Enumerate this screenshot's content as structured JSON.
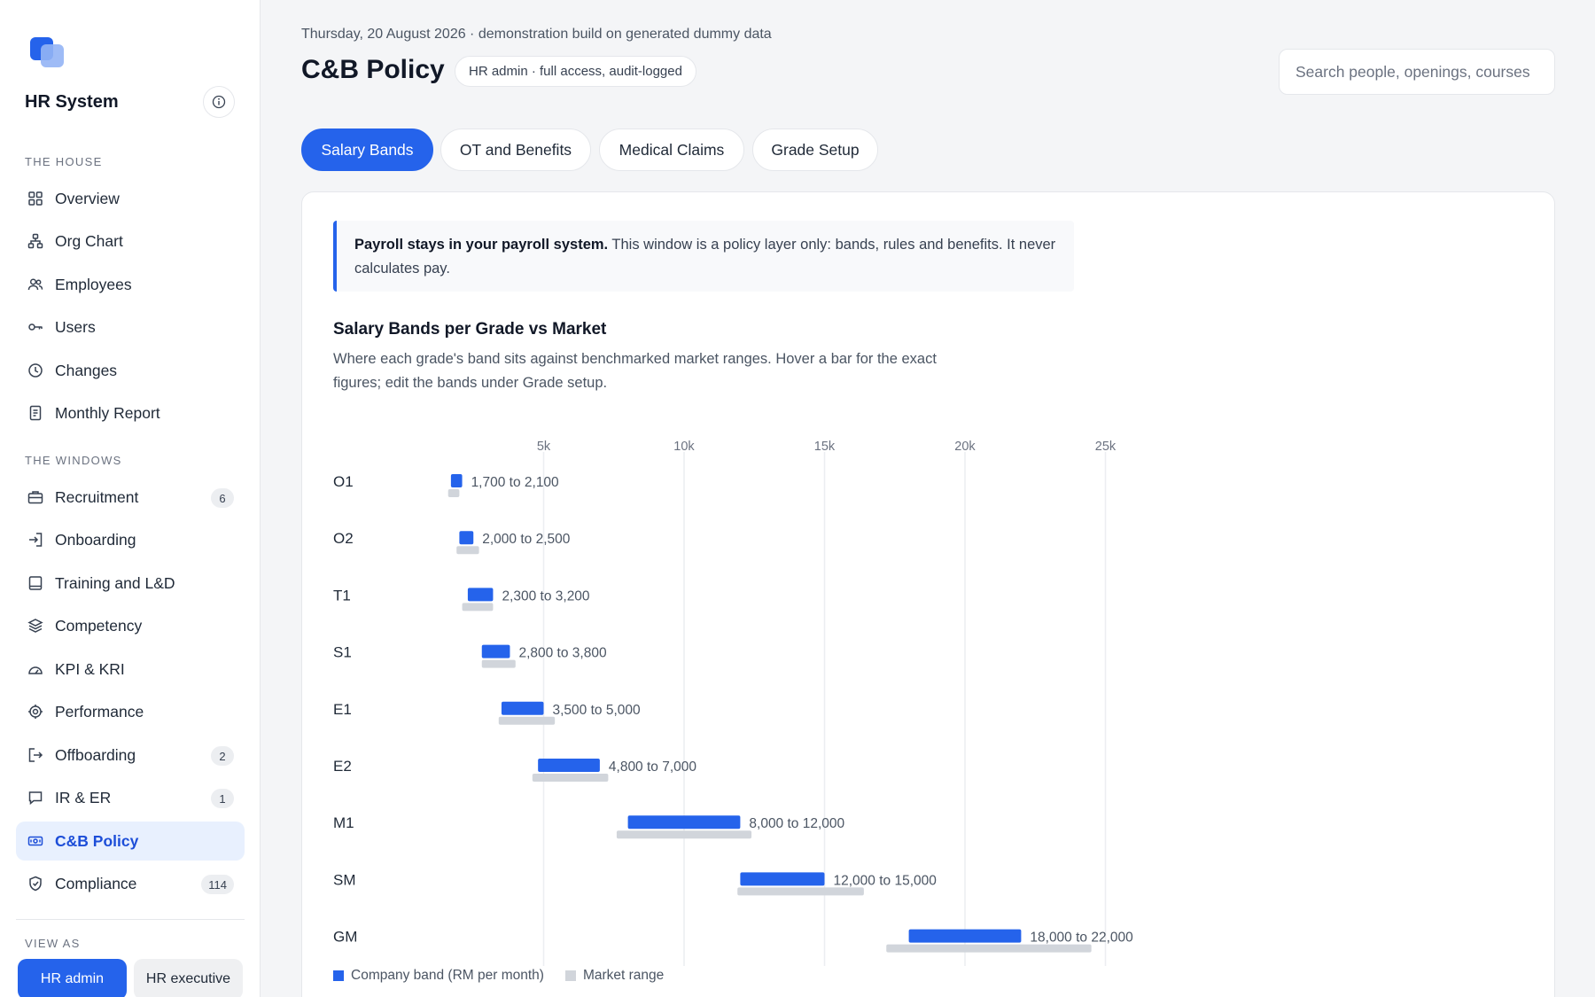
{
  "app": {
    "title": "HR System"
  },
  "sidebar": {
    "section_house": "THE HOUSE",
    "house_items": [
      {
        "label": "Overview",
        "icon": "grid-icon"
      },
      {
        "label": "Org Chart",
        "icon": "org-chart-icon"
      },
      {
        "label": "Employees",
        "icon": "people-icon"
      },
      {
        "label": "Users",
        "icon": "key-icon"
      },
      {
        "label": "Changes",
        "icon": "clock-icon"
      },
      {
        "label": "Monthly Report",
        "icon": "document-icon"
      }
    ],
    "section_windows": "THE WINDOWS",
    "window_items": [
      {
        "label": "Recruitment",
        "icon": "briefcase-icon",
        "badge": "6"
      },
      {
        "label": "Onboarding",
        "icon": "sign-in-icon",
        "badge": ""
      },
      {
        "label": "Training and L&D",
        "icon": "book-icon",
        "badge": ""
      },
      {
        "label": "Competency",
        "icon": "layers-icon",
        "badge": ""
      },
      {
        "label": "KPI & KRI",
        "icon": "gauge-icon",
        "badge": ""
      },
      {
        "label": "Performance",
        "icon": "target-icon",
        "badge": ""
      },
      {
        "label": "Offboarding",
        "icon": "sign-out-icon",
        "badge": "2"
      },
      {
        "label": "IR & ER",
        "icon": "chat-icon",
        "badge": "1"
      },
      {
        "label": "C&B Policy",
        "icon": "banknote-icon",
        "badge": "",
        "active": true
      },
      {
        "label": "Compliance",
        "icon": "shield-icon",
        "badge": "114"
      }
    ],
    "section_view_as": "VIEW AS",
    "view_as": {
      "primary": "HR admin",
      "secondary": "HR executive"
    }
  },
  "header": {
    "date_line": "Thursday, 20 August 2026 · demonstration build on generated dummy data",
    "page_title": "C&B Policy",
    "access_pill": "HR admin · full access, audit-logged",
    "search_placeholder": "Search people, openings, courses"
  },
  "tabs": [
    {
      "label": "Salary Bands",
      "active": true
    },
    {
      "label": "OT and Benefits",
      "active": false
    },
    {
      "label": "Medical Claims",
      "active": false
    },
    {
      "label": "Grade Setup",
      "active": false
    }
  ],
  "notice": {
    "bold": "Payroll stays in your payroll system.",
    "text": " This window is a policy layer only: bands, rules and benefits. It never calculates pay."
  },
  "chart_section": {
    "title": "Salary Bands per Grade vs Market",
    "subtitle": "Where each grade's band sits against benchmarked market ranges. Hover a bar for the exact figures; edit the bands under Grade setup."
  },
  "colors": {
    "accent": "#2563eb",
    "market": "#d1d5db",
    "active_bg": "#e8f0fe"
  },
  "chart_data": {
    "type": "bar",
    "orientation": "horizontal-range",
    "xticks": [
      "5k",
      "10k",
      "15k",
      "20k",
      "25k"
    ],
    "xtick_values": [
      5000,
      10000,
      15000,
      20000,
      25000
    ],
    "xlim": [
      0,
      26000
    ],
    "grid": true,
    "categories": [
      "O1",
      "O2",
      "T1",
      "S1",
      "E1",
      "E2",
      "M1",
      "SM",
      "GM"
    ],
    "series": [
      {
        "name": "Company band (RM per month)",
        "color": "#2563eb",
        "ranges": [
          [
            1700,
            2100
          ],
          [
            2000,
            2500
          ],
          [
            2300,
            3200
          ],
          [
            2800,
            3800
          ],
          [
            3500,
            5000
          ],
          [
            4800,
            7000
          ],
          [
            8000,
            12000
          ],
          [
            12000,
            15000
          ],
          [
            18000,
            22000
          ]
        ]
      },
      {
        "name": "Market range",
        "color": "#d1d5db",
        "ranges": [
          [
            1600,
            2000
          ],
          [
            1900,
            2700
          ],
          [
            2100,
            3200
          ],
          [
            2800,
            4000
          ],
          [
            3400,
            5400
          ],
          [
            4600,
            7300
          ],
          [
            7600,
            12400
          ],
          [
            11900,
            16400
          ],
          [
            17200,
            24500
          ]
        ]
      }
    ],
    "labels": [
      "1,700 to 2,100",
      "2,000 to 2,500",
      "2,300 to 3,200",
      "2,800 to 3,800",
      "3,500 to 5,000",
      "4,800 to 7,000",
      "8,000 to 12,000",
      "12,000 to 15,000",
      "18,000 to 22,000"
    ],
    "legend_position": "bottom-left"
  }
}
